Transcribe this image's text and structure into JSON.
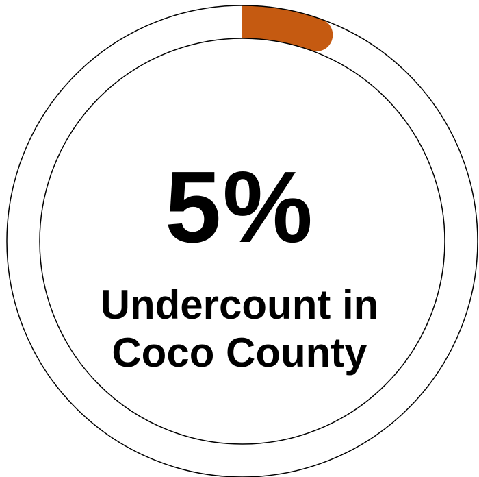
{
  "chart_data": {
    "type": "pie",
    "variant": "progress-ring",
    "values": [
      5,
      95
    ],
    "categories": [
      "Undercount",
      "Remainder"
    ],
    "value_label": "5%",
    "label_lines": [
      "Undercount in",
      "Coco County"
    ],
    "colors": {
      "progress": "#c55a11",
      "track": "#ffffff",
      "outline": "#000000"
    }
  }
}
